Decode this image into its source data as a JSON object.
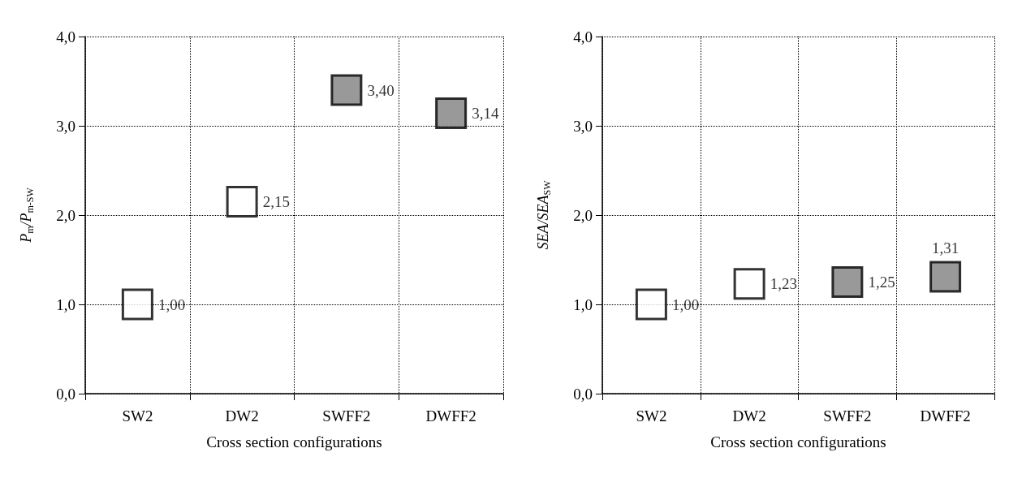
{
  "chart_data": [
    {
      "type": "scatter",
      "xlabel": "Cross section configurations",
      "ylabel": "P$_{m}$/P$_{m-SW}$",
      "categories": [
        "SW2",
        "DW2",
        "SWFF2",
        "DWFF2"
      ],
      "values": [
        1.0,
        2.15,
        3.4,
        3.14
      ],
      "value_labels": [
        "1,00",
        "2,15",
        "3,40",
        "3,14"
      ],
      "colors": [
        "#ffffff",
        "#ffffff",
        "#808080",
        "#808080"
      ],
      "marker": "square",
      "grid": true,
      "ylim": [
        0,
        4
      ],
      "yticks": [
        {
          "value": 0,
          "label": "0,0"
        },
        {
          "value": 1,
          "label": "1,0"
        },
        {
          "value": 2,
          "label": "2,0"
        },
        {
          "value": 3,
          "label": "3,0"
        },
        {
          "value": 4,
          "label": "4,0"
        }
      ]
    },
    {
      "type": "scatter",
      "xlabel": "Cross section configurations",
      "ylabel": "SEA/SEA$_{SW}$",
      "categories": [
        "SW2",
        "DW2",
        "SWFF2",
        "DWFF2"
      ],
      "values": [
        1.0,
        1.23,
        1.25,
        1.31
      ],
      "value_labels": [
        "1,00",
        "1,23",
        "1,25",
        "1,31"
      ],
      "colors": [
        "#ffffff",
        "#ffffff",
        "#808080",
        "#808080"
      ],
      "marker": "square",
      "grid": true,
      "ylim": [
        0,
        4
      ],
      "yticks": [
        {
          "value": 0,
          "label": "0,0"
        },
        {
          "value": 1,
          "label": "1,0"
        },
        {
          "value": 2,
          "label": "2,0"
        },
        {
          "value": 3,
          "label": "3,0"
        },
        {
          "value": 4,
          "label": "4,0"
        }
      ]
    }
  ]
}
